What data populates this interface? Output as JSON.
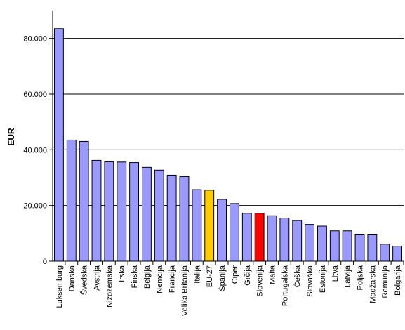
{
  "chart_data": {
    "type": "bar",
    "title": "",
    "xlabel": "",
    "ylabel": "EUR",
    "ylim": [
      0,
      90000
    ],
    "yticks": [
      {
        "value": 0,
        "label": "0"
      },
      {
        "value": 20000,
        "label": "20.000"
      },
      {
        "value": 40000,
        "label": "40.000"
      },
      {
        "value": 60000,
        "label": "60.000"
      },
      {
        "value": 80000,
        "label": "80.000"
      }
    ],
    "grid": true,
    "legend": "none",
    "categories": [
      "Luksemburg",
      "Danska",
      "Švedska",
      "Avstrija",
      "Nizozemska",
      "Irska",
      "Finska",
      "Belgija",
      "Nemčija",
      "Francija",
      "Velika Britanija",
      "Italija",
      "EU-27",
      "Španija",
      "Ciper",
      "Grčija",
      "Slovenija",
      "Malta",
      "Portugalska",
      "Češka",
      "Slovaška",
      "Estonija",
      "Litva",
      "Latvija",
      "Poljska",
      "Madžarska",
      "Romunija",
      "Bolgarija"
    ],
    "values": [
      83500,
      43500,
      43000,
      36200,
      35700,
      35600,
      35400,
      33700,
      32700,
      30900,
      30400,
      25700,
      25500,
      22200,
      20700,
      17200,
      17200,
      16300,
      15500,
      14600,
      13200,
      12600,
      10900,
      10900,
      9700,
      9700,
      6100,
      5400
    ],
    "colors": {
      "default": "#9999ff",
      "highlight_eu27": "#ffcc00",
      "highlight_slovenija": "#ff0000",
      "bar_stroke": "#000000",
      "grid": "#000000"
    },
    "highlights": {
      "EU-27": "#ffcc00",
      "Slovenija": "#ff0000"
    }
  }
}
